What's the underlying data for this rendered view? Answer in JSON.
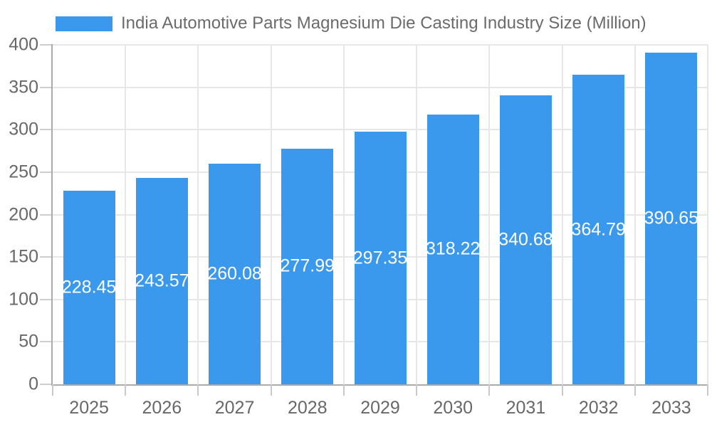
{
  "legend": {
    "label": "India Automotive Parts Magnesium Die Casting Industry Size (Million)"
  },
  "chart_data": {
    "type": "bar",
    "title": "India Automotive Parts Magnesium Die Casting Industry Size (Million)",
    "categories": [
      "2025",
      "2026",
      "2027",
      "2028",
      "2029",
      "2030",
      "2031",
      "2032",
      "2033"
    ],
    "values": [
      228.45,
      243.57,
      260.08,
      277.99,
      297.35,
      318.22,
      340.68,
      364.79,
      390.65
    ],
    "value_labels": [
      "228.45",
      "243.57",
      "260.08",
      "277.99",
      "297.35",
      "318.22",
      "340.68",
      "364.79",
      "390.65"
    ],
    "ylim": [
      0,
      400
    ],
    "ytick_step": 50,
    "yticks": [
      "0",
      "50",
      "100",
      "150",
      "200",
      "250",
      "300",
      "350",
      "400"
    ],
    "grid": true,
    "legend_position": "top",
    "colors": {
      "bar": "#3a99ec",
      "value_label": "#ffffff",
      "axis_text": "#686868",
      "axis_line": "#ababab",
      "gridline": "#e7e7e7"
    }
  }
}
